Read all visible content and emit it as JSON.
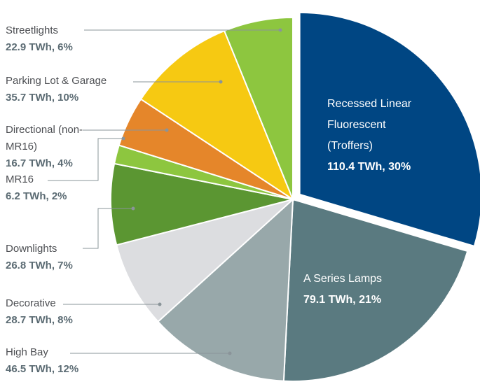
{
  "chart_data": {
    "type": "pie",
    "categories": [
      "Recessed Linear Fluorescent (Troffers)",
      "A Series Lamps",
      "High Bay",
      "Decorative",
      "Downlights",
      "MR16",
      "Directional (non-MR16)",
      "Parking Lot & Garage",
      "Streetlights"
    ],
    "values": [
      110.4,
      79.1,
      46.5,
      28.7,
      26.8,
      6.2,
      16.7,
      35.7,
      22.9
    ],
    "value_labels": [
      "110.4 TWh, 30%",
      "79.1 TWh, 21%",
      "46.5 TWh, 12%",
      "28.7 TWh, 8%",
      "26.8 TWh, 7%",
      "6.2 TWh, 2%",
      "16.7 TWh, 4%",
      "35.7 TWh, 10%",
      "22.9 TWh, 6%"
    ],
    "colors": [
      "#004683",
      "#5a7a80",
      "#98a8aa",
      "#dcdde0",
      "#5b9632",
      "#8dc63f",
      "#e5862a",
      "#f6c912",
      "#8dc63f"
    ]
  }
}
